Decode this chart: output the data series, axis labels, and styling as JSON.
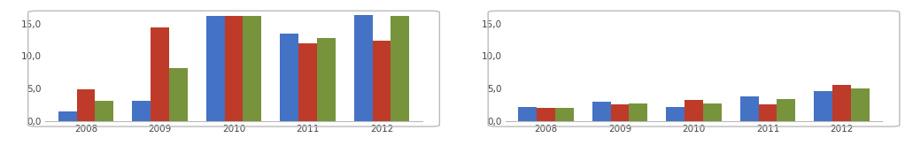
{
  "left_chart": {
    "categories": [
      "2008",
      "2009",
      "2010",
      "2011",
      "2012"
    ],
    "blue": [
      1.5,
      3.1,
      16.2,
      13.4,
      16.3
    ],
    "red": [
      4.8,
      14.4,
      16.2,
      12.0,
      12.3
    ],
    "green": [
      3.1,
      8.1,
      16.2,
      12.8,
      16.2
    ],
    "ylim": [
      0,
      16.5
    ],
    "yticks": [
      0.0,
      5.0,
      10.0,
      15.0
    ]
  },
  "right_chart": {
    "categories": [
      "2008",
      "2009",
      "2010",
      "2011",
      "2012"
    ],
    "blue": [
      2.2,
      3.0,
      2.2,
      3.8,
      4.6
    ],
    "red": [
      2.0,
      2.5,
      3.2,
      2.6,
      5.5
    ],
    "green": [
      2.0,
      2.7,
      2.7,
      3.3,
      5.0
    ],
    "ylim": [
      0,
      16.5
    ],
    "yticks": [
      0.0,
      5.0,
      10.0,
      15.0
    ]
  },
  "bar_colors": {
    "blue": "#4472C4",
    "red": "#BE3B2A",
    "green": "#77933C"
  },
  "panel_bg": "#FFFFFF",
  "plot_bg": "#FFFFFF",
  "bar_width": 0.25,
  "tick_fontsize": 7.5,
  "panel_border_color": "#CCCCCC"
}
